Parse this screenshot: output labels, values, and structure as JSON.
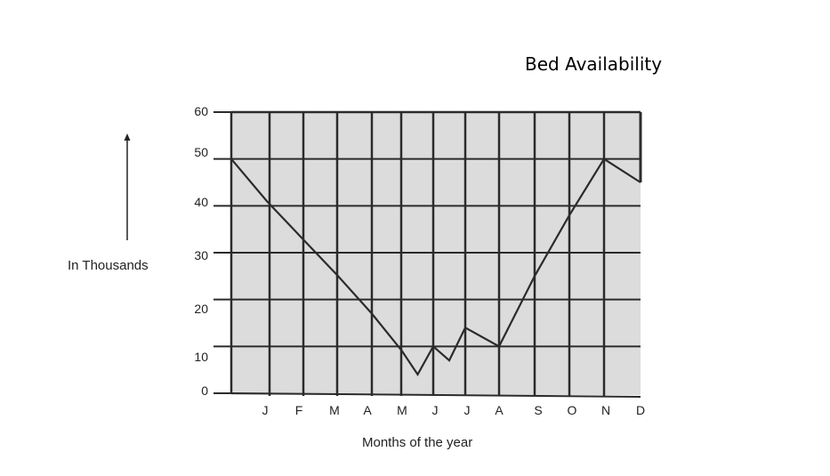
{
  "chart_data": {
    "type": "line",
    "title": "Bed Availability",
    "ylabel": "In Thousands",
    "xlabel": "Months of the year",
    "categories": [
      "J",
      "F",
      "M",
      "A",
      "M",
      "J",
      "J",
      "A",
      "S",
      "O",
      "N",
      "D"
    ],
    "yticks": [
      0,
      10,
      20,
      30,
      40,
      50,
      60
    ],
    "ylim": [
      0,
      60
    ],
    "grid": true,
    "points": [
      {
        "x": 0.0,
        "y": 50
      },
      {
        "x": 1.0,
        "y": 41
      },
      {
        "x": 2.0,
        "y": 33
      },
      {
        "x": 3.0,
        "y": 25
      },
      {
        "x": 4.0,
        "y": 17
      },
      {
        "x": 5.0,
        "y": 9
      },
      {
        "x": 5.5,
        "y": 4
      },
      {
        "x": 6.0,
        "y": 10
      },
      {
        "x": 6.5,
        "y": 7
      },
      {
        "x": 7.0,
        "y": 14
      },
      {
        "x": 8.0,
        "y": 10
      },
      {
        "x": 9.0,
        "y": 25
      },
      {
        "x": 10.0,
        "y": 38
      },
      {
        "x": 11.0,
        "y": 50
      },
      {
        "x": 12.0,
        "y": 45
      }
    ],
    "colors": {
      "background": "#dcdcdc",
      "line": "#2b2b2b",
      "grid": "#2b2b2b"
    }
  }
}
